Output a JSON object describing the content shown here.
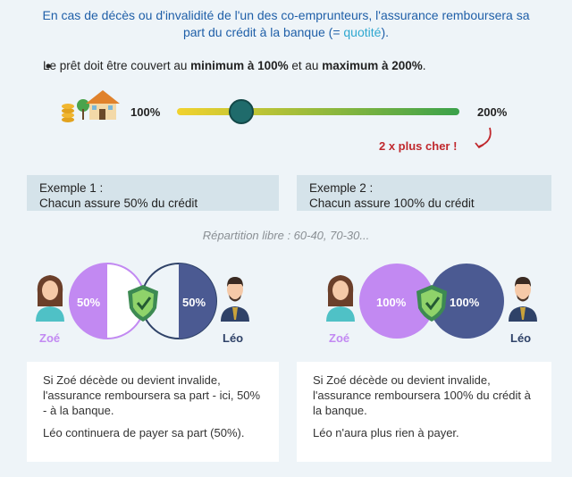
{
  "intro": {
    "before": "En cas de décès ou d'invalidité de l'un des co-emprunteurs, l'assurance remboursera sa part du crédit à la banque (= ",
    "highlight": "quotité",
    "after": ")."
  },
  "bullet": {
    "parts": [
      "Le prêt doit être couvert au ",
      "minimum à 100%",
      " et au ",
      "maximum à 200%",
      "."
    ]
  },
  "scale": {
    "min_label": "100%",
    "max_label": "200%",
    "note": "2 x plus cher !"
  },
  "note": "Répartition libre : 60-40, 70-30...",
  "examples": [
    {
      "title": "Exemple 1 :",
      "subtitle": "Chacun assure 50% du crédit",
      "left": {
        "name": "Zoé",
        "share": "50%"
      },
      "right": {
        "name": "Léo",
        "share": "50%"
      },
      "text": [
        "Si Zoé décède ou devient invalide, l'assurance remboursera sa part - ici, 50% - à la banque.",
        "Léo continuera de payer sa part (50%)."
      ]
    },
    {
      "title": "Exemple 2 :",
      "subtitle": "Chacun assure 100% du crédit",
      "left": {
        "name": "Zoé",
        "share": "100%"
      },
      "right": {
        "name": "Léo",
        "share": "100%"
      },
      "text": [
        "Si Zoé décède ou devient invalide, l'assurance remboursera 100% du crédit à la banque.",
        "Léo n'aura plus rien à payer."
      ]
    }
  ]
}
